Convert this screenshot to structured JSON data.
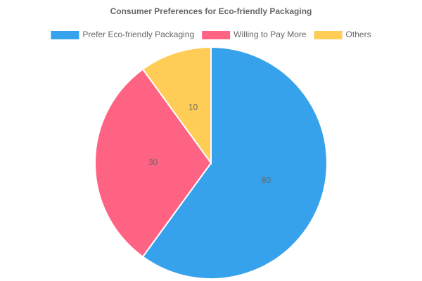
{
  "chart_data": {
    "type": "pie",
    "title": "Consumer Preferences for Eco-friendly Packaging",
    "categories": [
      "Prefer Eco-friendly Packaging",
      "Willing to Pay More",
      "Others"
    ],
    "values": [
      60,
      30,
      10
    ],
    "colors": [
      "#36a2eb",
      "#ff6384",
      "#ffcd56"
    ],
    "legend": "top"
  }
}
